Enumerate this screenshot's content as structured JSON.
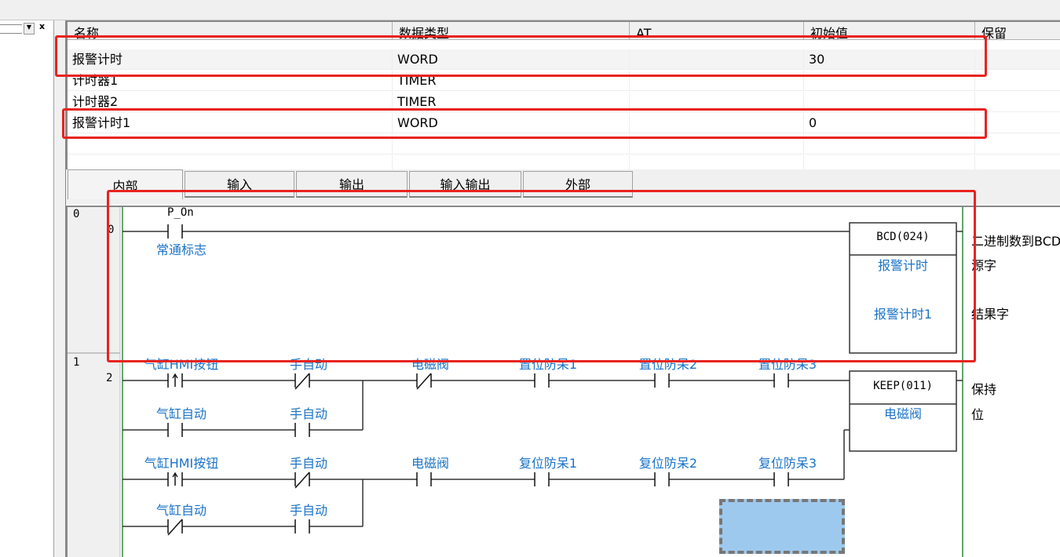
{
  "colors": {
    "accent_label": "#1a73c8",
    "rail": "#2e8b3a",
    "highlight": "#e8231f",
    "selection": "#9ec9ee"
  },
  "left_panel": {
    "close_label": "x",
    "dropdown_icon": "chevron-down-icon"
  },
  "table": {
    "headers": [
      "名称",
      "数据类型",
      "AT",
      "初始值",
      "保留"
    ],
    "rows": [
      {
        "name": "报警计时",
        "type": "WORD",
        "at": "",
        "init": "30"
      },
      {
        "name": "计时器1",
        "type": "TIMER",
        "at": "",
        "init": ""
      },
      {
        "name": "计时器2",
        "type": "TIMER",
        "at": "",
        "init": ""
      },
      {
        "name": "报警计时1",
        "type": "WORD",
        "at": "",
        "init": "0"
      }
    ]
  },
  "tabs": [
    "内部",
    "输入",
    "输出",
    "输入输出",
    "外部"
  ],
  "ladder": {
    "rung0": {
      "number": "0",
      "step": "0",
      "contact": {
        "address": "P_On",
        "comment": "常通标志",
        "type": "NO"
      },
      "instr": {
        "name": "BCD(024)",
        "op1": "报警计时",
        "op2": "报警计时1",
        "desc": "二进制数到BCD",
        "op1_desc": "源字",
        "op2_desc": "结果字"
      }
    },
    "rung1": {
      "number": "1",
      "step": "2",
      "rows": [
        [
          {
            "label": "气缸HMI按钮",
            "type": "UP"
          },
          {
            "label": "手自动",
            "type": "NC"
          },
          {
            "label": "电磁阀",
            "type": "NC"
          },
          {
            "label": "置位防呆1",
            "type": "NO"
          },
          {
            "label": "置位防呆2",
            "type": "NO"
          },
          {
            "label": "置位防呆3",
            "type": "NO"
          }
        ],
        [
          {
            "label": "气缸自动",
            "type": "NO"
          },
          {
            "label": "手自动",
            "type": "NO"
          }
        ],
        [
          {
            "label": "气缸HMI按钮",
            "type": "UP"
          },
          {
            "label": "手自动",
            "type": "NC"
          },
          {
            "label": "电磁阀",
            "type": "NO"
          },
          {
            "label": "复位防呆1",
            "type": "NO"
          },
          {
            "label": "复位防呆2",
            "type": "NO"
          },
          {
            "label": "复位防呆3",
            "type": "NO"
          }
        ],
        [
          {
            "label": "气缸自动",
            "type": "NC"
          },
          {
            "label": "手自动",
            "type": "NO"
          }
        ]
      ],
      "instr": {
        "name": "KEEP(011)",
        "op1": "电磁阀",
        "desc": "保持",
        "desc2": "位"
      }
    }
  }
}
